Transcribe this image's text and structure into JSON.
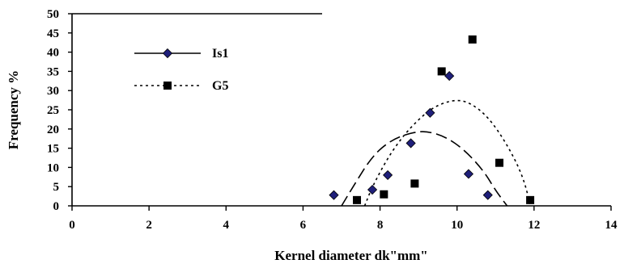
{
  "chart_data": {
    "type": "scatter",
    "xlabel": "Kernel diameter dk\"mm\"",
    "ylabel": "Frequency %",
    "xlim": [
      0,
      14
    ],
    "ylim": [
      0,
      50
    ],
    "x_ticks": [
      "0",
      "2",
      "4",
      "6",
      "8",
      "10",
      "12",
      "14"
    ],
    "y_ticks": [
      "0",
      "5",
      "10",
      "15",
      "20",
      "25",
      "30",
      "35",
      "40",
      "45",
      "50"
    ],
    "legend_position": "top-left",
    "series": [
      {
        "name": "Is1",
        "marker": "diamond",
        "color": "#1f1f7a",
        "line_style": "solid",
        "points": [
          [
            6.8,
            2.8
          ],
          [
            7.8,
            4.2
          ],
          [
            8.2,
            8.0
          ],
          [
            8.8,
            16.3
          ],
          [
            9.3,
            24.2
          ],
          [
            9.8,
            33.8
          ],
          [
            10.3,
            8.3
          ],
          [
            10.8,
            2.8
          ]
        ],
        "trend": [
          [
            7.0,
            0
          ],
          [
            7.3,
            5
          ],
          [
            7.8,
            13
          ],
          [
            8.3,
            17.2
          ],
          [
            8.8,
            19
          ],
          [
            9.2,
            19.5
          ],
          [
            9.7,
            18
          ],
          [
            10.2,
            14.5
          ],
          [
            10.7,
            9
          ],
          [
            11.0,
            4
          ],
          [
            11.3,
            0
          ]
        ]
      },
      {
        "name": "G5",
        "marker": "square",
        "color": "#000000",
        "line_style": "dashed",
        "points": [
          [
            7.4,
            1.5
          ],
          [
            8.1,
            3.0
          ],
          [
            8.9,
            5.8
          ],
          [
            9.6,
            35.0
          ],
          [
            10.4,
            43.3
          ],
          [
            11.1,
            11.2
          ],
          [
            11.9,
            1.5
          ]
        ],
        "trend": [
          [
            7.6,
            0
          ],
          [
            7.8,
            5
          ],
          [
            8.2,
            12.5
          ],
          [
            8.6,
            18.2
          ],
          [
            9.0,
            22.5
          ],
          [
            9.4,
            25.8
          ],
          [
            9.9,
            27.6
          ],
          [
            10.3,
            27.1
          ],
          [
            10.8,
            23.3
          ],
          [
            11.3,
            16
          ],
          [
            11.7,
            8
          ],
          [
            11.9,
            0.5
          ]
        ]
      }
    ]
  }
}
